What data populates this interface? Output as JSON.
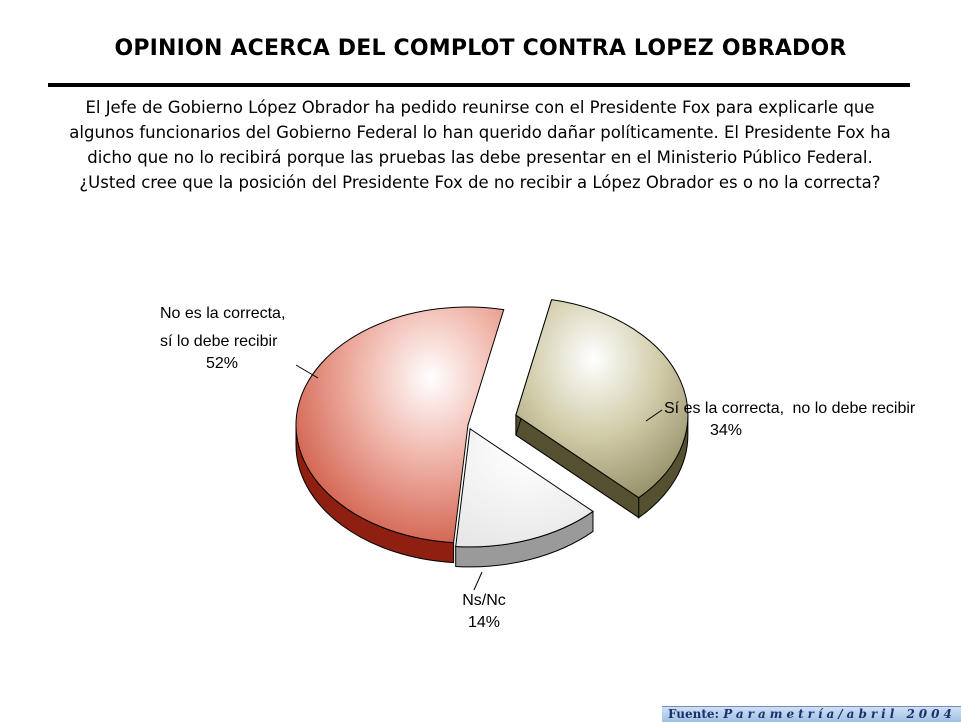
{
  "title": "OPINION ACERCA DEL COMPLOT CONTRA LOPEZ OBRADOR",
  "question": [
    "El Jefe de Gobierno López Obrador ha pedido reunirse con el Presidente Fox para explicarle que",
    "algunos funcionarios del Gobierno Federal lo han querido dañar políticamente. El Presidente Fox ha",
    "dicho que no lo recibirá porque las pruebas las debe presentar en el Ministerio Público Federal.",
    "¿Usted cree que la posición del Presidente Fox de no recibir a López Obrador es o no la correcta?"
  ],
  "chart_data": {
    "type": "pie",
    "style": "3d-exploded",
    "slices": [
      {
        "label_lines": [
          "No es la correcta,",
          "sí lo debe recibir"
        ],
        "value": 52,
        "value_text": "52%",
        "color": "#c8361e"
      },
      {
        "label_lines": [
          "Sí es la correcta,",
          "no lo debe recibir"
        ],
        "value": 34,
        "value_text": "34%",
        "color": "#8a835a"
      },
      {
        "label_lines": [
          "Ns/Nc"
        ],
        "value": 14,
        "value_text": "14%",
        "color": "#f2f2f2"
      }
    ],
    "legend": "none"
  },
  "footer": {
    "label": "Fuente:",
    "source": "Parametría/abril 2004"
  }
}
